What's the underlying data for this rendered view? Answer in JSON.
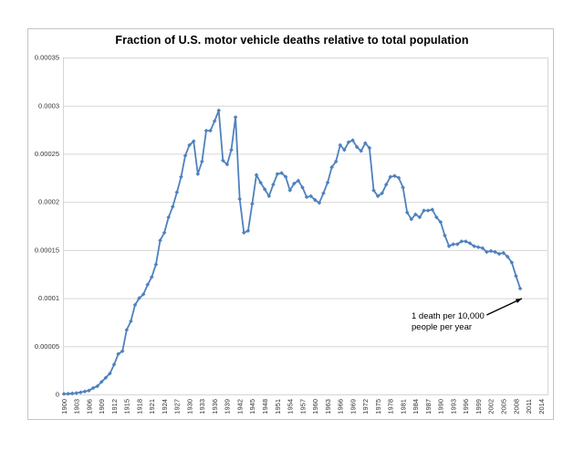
{
  "figure": {
    "title": "Fraction of U.S. motor vehicle deaths relative to total population"
  },
  "chart_data": {
    "type": "line",
    "title": "Fraction of U.S. motor vehicle deaths relative to total population",
    "xlabel": "",
    "ylabel": "",
    "legend": "none",
    "grid": "horizontal",
    "line_color": "#4F81BD",
    "marker": "diamond",
    "x_start_year": 1900,
    "x_end_year": 2009,
    "x_axis_tick_labels": [
      "1900",
      "1903",
      "1906",
      "1909",
      "1912",
      "1915",
      "1918",
      "1921",
      "1924",
      "1927",
      "1930",
      "1933",
      "1936",
      "1939",
      "1942",
      "1945",
      "1948",
      "1951",
      "1954",
      "1957",
      "1960",
      "1963",
      "1966",
      "1969",
      "1972",
      "1975",
      "1978",
      "1981",
      "1984",
      "1987",
      "1990",
      "1993",
      "1996",
      "1999",
      "2002",
      "2005",
      "2008",
      "2011",
      "2014"
    ],
    "y_axis_tick_labels": [
      "0",
      "0.00005",
      "0.0001",
      "0.00015",
      "0.0002",
      "0.00025",
      "0.0003",
      "0.00035"
    ],
    "y_axis_tick_values": [
      0,
      5e-05,
      0.0001,
      0.00015,
      0.0002,
      0.00025,
      0.0003,
      0.00035
    ],
    "ylim": [
      0,
      0.00035
    ],
    "xlim_years": [
      1900,
      2015.5
    ],
    "value_multiplier_to_fraction": 1e-05,
    "values_per_100k": [
      0.05,
      0.07,
      0.1,
      0.14,
      0.21,
      0.3,
      0.4,
      0.66,
      0.85,
      1.3,
      1.73,
      2.18,
      3.11,
      4.2,
      4.5,
      6.7,
      7.6,
      9.3,
      10.0,
      10.4,
      11.4,
      12.2,
      13.5,
      16.0,
      16.8,
      18.4,
      19.5,
      21.0,
      22.6,
      24.8,
      25.9,
      26.3,
      22.9,
      24.2,
      27.4,
      27.4,
      28.4,
      29.5,
      24.3,
      23.9,
      25.4,
      28.8,
      20.3,
      16.8,
      17.0,
      19.8,
      22.8,
      22.0,
      21.3,
      20.6,
      21.8,
      22.9,
      23.0,
      22.6,
      21.2,
      21.9,
      22.2,
      21.5,
      20.5,
      20.6,
      20.2,
      19.9,
      20.9,
      22.0,
      23.6,
      24.2,
      25.9,
      25.4,
      26.2,
      26.4,
      25.7,
      25.3,
      26.1,
      25.6,
      21.2,
      20.6,
      20.9,
      21.8,
      22.6,
      22.7,
      22.5,
      21.5,
      18.9,
      18.2,
      18.7,
      18.4,
      19.1,
      19.1,
      19.2,
      18.4,
      17.9,
      16.5,
      15.4,
      15.6,
      15.6,
      15.9,
      15.9,
      15.7,
      15.4,
      15.3,
      15.2,
      14.8,
      14.9,
      14.8,
      14.6,
      14.7,
      14.3,
      13.7,
      12.3,
      11.0
    ],
    "annotation": {
      "lines": [
        "1 death per 10,000",
        "people per year"
      ],
      "text_anchor_data_coords": {
        "year": 1983,
        "value": 8.62e-05
      },
      "arrow_from_data_coords": {
        "year": 2001.0,
        "value": 8.25e-05
      },
      "arrow_to_data_coords": {
        "year": 2009.4,
        "value": 9.96e-05
      }
    },
    "colors": {
      "series": "#4F81BD",
      "gridline": "#D6D6D6",
      "plot_border": "#D6D6D6",
      "axis_line": "#BDBDBD",
      "tick_text": "#333333",
      "title_text": "#000000",
      "annotation_arrow": "#000000"
    }
  }
}
